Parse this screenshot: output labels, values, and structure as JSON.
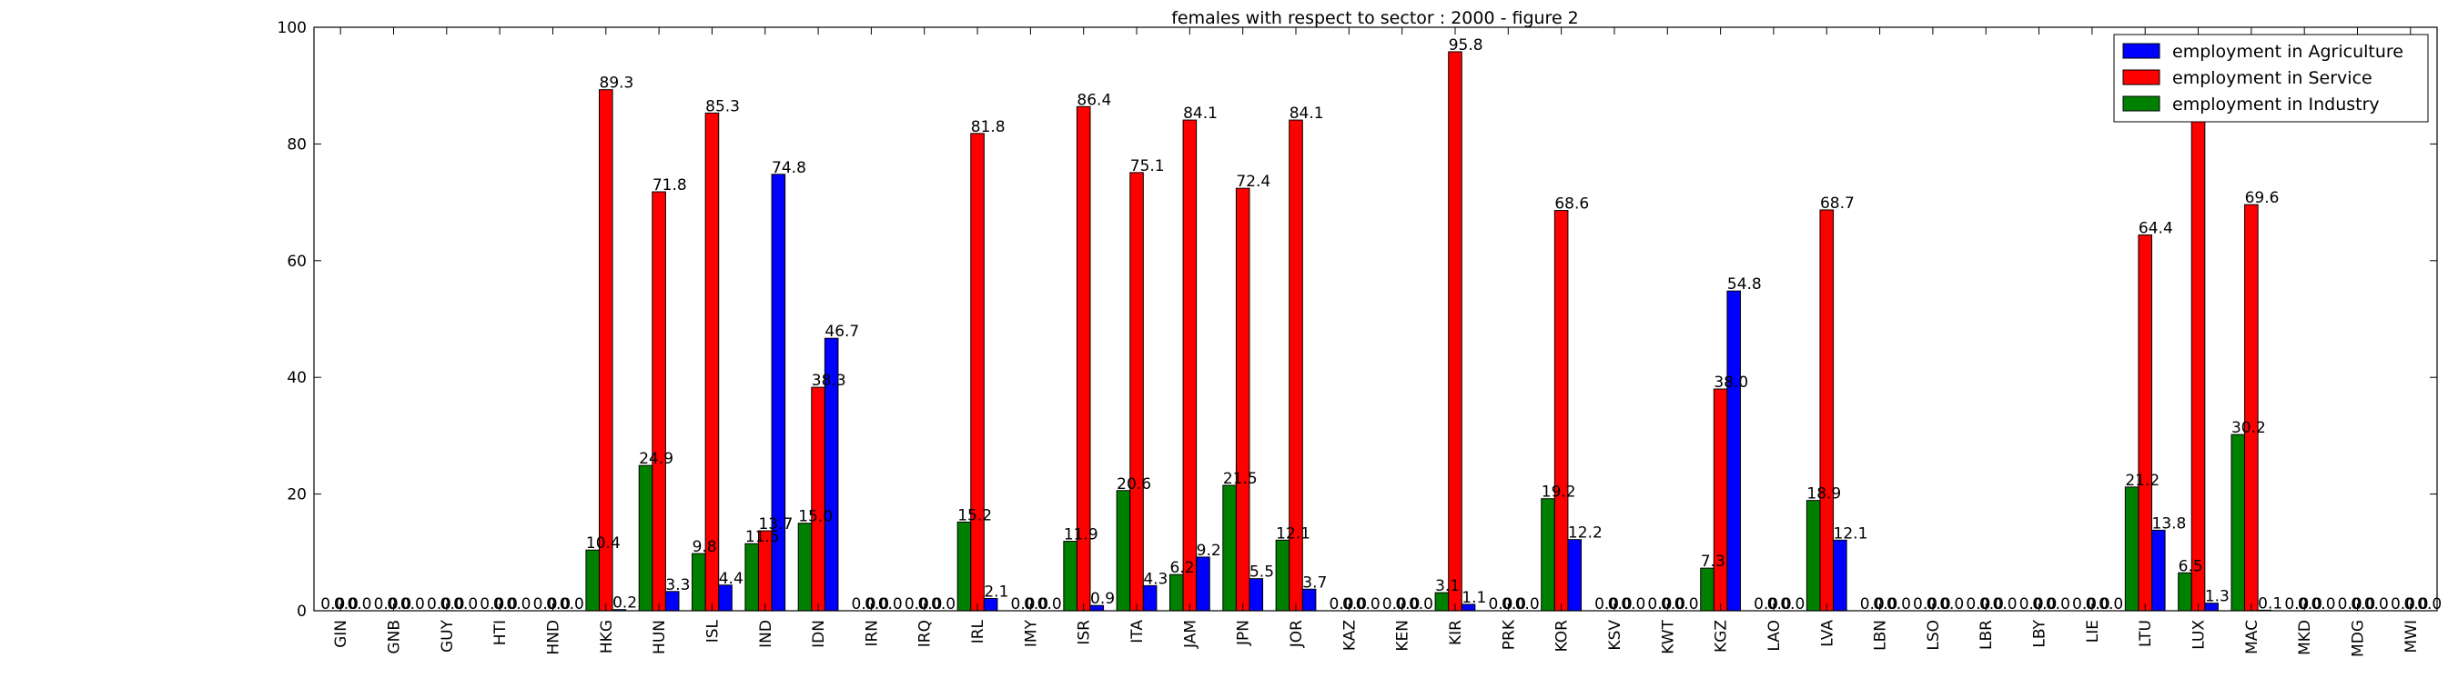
{
  "chart_data": {
    "type": "bar",
    "title": "females with respect to sector : 2000 - figure 2",
    "xlabel": "",
    "ylabel": "",
    "ylim": [
      0,
      100
    ],
    "yticks": [
      0,
      20,
      40,
      60,
      80,
      100
    ],
    "grid": false,
    "legend_position": "top-right",
    "categories": [
      "GIN",
      "GNB",
      "GUY",
      "HTI",
      "HND",
      "HKG",
      "HUN",
      "ISL",
      "IND",
      "IDN",
      "IRN",
      "IRQ",
      "IRL",
      "IMY",
      "ISR",
      "ITA",
      "JAM",
      "JPN",
      "JOR",
      "KAZ",
      "KEN",
      "KIR",
      "PRK",
      "KOR",
      "KSV",
      "KWT",
      "KGZ",
      "LAO",
      "LVA",
      "LBN",
      "LSO",
      "LBR",
      "LBY",
      "LIE",
      "LTU",
      "LUX",
      "MAC",
      "MKD",
      "MDG",
      "MWI"
    ],
    "series": [
      {
        "name": "employment in Industry",
        "color": "#008000",
        "values": [
          0,
          0,
          0,
          0,
          0,
          10.4,
          24.9,
          9.8,
          11.5,
          15.0,
          0,
          0,
          15.2,
          0,
          11.9,
          20.6,
          6.2,
          21.5,
          12.1,
          0,
          0,
          3.1,
          0,
          19.2,
          0,
          0,
          7.3,
          0,
          18.9,
          0,
          0,
          0,
          0,
          0,
          21.2,
          6.5,
          30.2,
          0,
          0,
          0
        ]
      },
      {
        "name": "employment in Service",
        "color": "#ff0000",
        "values": [
          0,
          0,
          0,
          0,
          0,
          89.3,
          71.8,
          85.3,
          13.7,
          38.3,
          0,
          0,
          81.8,
          0,
          86.4,
          75.1,
          84.1,
          72.4,
          84.1,
          0,
          0,
          95.8,
          0,
          68.6,
          0,
          0,
          38.0,
          0,
          68.7,
          0,
          0,
          0,
          0,
          0,
          64.4,
          92.2,
          69.6,
          0,
          0,
          0
        ]
      },
      {
        "name": "employment in Agriculture",
        "color": "#0000ff",
        "values": [
          0,
          0,
          0,
          0,
          0,
          0.2,
          3.3,
          4.4,
          74.8,
          46.7,
          0,
          0,
          2.1,
          0,
          0.9,
          4.3,
          9.2,
          5.5,
          3.7,
          0,
          0,
          1.1,
          0,
          12.2,
          0,
          0,
          54.8,
          0,
          12.1,
          0,
          0,
          0,
          0,
          0,
          13.8,
          1.3,
          0.1,
          0,
          0,
          0
        ]
      }
    ],
    "legend_order": [
      "employment in Agriculture",
      "employment in Service",
      "employment in Industry"
    ]
  }
}
